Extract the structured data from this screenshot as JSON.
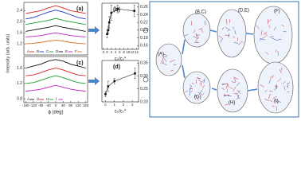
{
  "chart_data": [
    {
      "type": "line",
      "label": "(a)",
      "y_label": "Intensity (arb. units)",
      "xlim": [
        -170,
        170
      ],
      "ylim": [
        0.8,
        2.7
      ],
      "yticks": [
        1.2,
        1.6,
        {
          "value": 2,
          "label": "2.0"
        },
        2.4
      ],
      "x": [
        -160,
        -120,
        -80,
        -40,
        0,
        40,
        80,
        120,
        160
      ],
      "series": [
        {
          "name": "A",
          "color": "#d62020",
          "values": [
            2.3,
            2.35,
            2.4,
            2.5,
            2.58,
            2.5,
            2.4,
            2.35,
            2.3
          ]
        },
        {
          "name": "B",
          "color": "#2030c8",
          "values": [
            2.1,
            2.15,
            2.25,
            2.35,
            2.42,
            2.35,
            2.25,
            2.15,
            2.1
          ]
        },
        {
          "name": "C",
          "color": "#1a9a30",
          "values": [
            1.9,
            1.95,
            2.0,
            2.05,
            2.12,
            2.05,
            2.0,
            1.95,
            1.9
          ]
        },
        {
          "name": "D",
          "color": "#111111",
          "values": [
            1.65,
            1.7,
            1.75,
            1.8,
            1.86,
            1.8,
            1.75,
            1.7,
            1.65
          ]
        },
        {
          "name": "E",
          "color": "#c020c0",
          "values": [
            1.45,
            1.47,
            1.5,
            1.55,
            1.6,
            1.55,
            1.5,
            1.47,
            1.45
          ]
        },
        {
          "name": "F",
          "color": "#e07020",
          "values": [
            1.2,
            1.22,
            1.25,
            1.3,
            1.33,
            1.3,
            1.25,
            1.22,
            1.2
          ]
        }
      ]
    },
    {
      "type": "line",
      "label": "(c)",
      "x_label": "ϕ (deg)",
      "xlim": [
        -170,
        170
      ],
      "ylim": [
        0.7,
        1.9
      ],
      "xticks": [
        -160,
        -120,
        -80,
        -40,
        0,
        40,
        80,
        120,
        160
      ],
      "yticks": [
        0.8,
        1.2,
        1.6
      ],
      "x": [
        -160,
        -120,
        -80,
        -40,
        0,
        40,
        80,
        120,
        160
      ],
      "series": [
        {
          "name": "A",
          "color": "#111111",
          "values": [
            1.6,
            1.65,
            1.7,
            1.78,
            1.82,
            1.78,
            1.7,
            1.65,
            1.6
          ]
        },
        {
          "name": "G",
          "color": "#d62020",
          "values": [
            1.4,
            1.42,
            1.48,
            1.55,
            1.6,
            1.55,
            1.48,
            1.42,
            1.4
          ]
        },
        {
          "name": "H",
          "color": "#1a9a30",
          "values": [
            1.2,
            1.22,
            1.28,
            1.35,
            1.4,
            1.35,
            1.28,
            1.22,
            1.2
          ]
        },
        {
          "name": "I",
          "color": "#c020c0",
          "values": [
            1.0,
            1.02,
            1.05,
            1.1,
            1.15,
            1.1,
            1.05,
            1.02,
            1.0
          ]
        }
      ]
    },
    {
      "type": "errorline",
      "label": "(b)",
      "x_label": "cₛ/cₛ*",
      "xlim": [
        -2.5,
        15
      ],
      "xticks": [
        -2,
        0,
        2,
        4,
        6,
        8,
        10,
        12,
        14
      ],
      "y2lim": [
        0.15,
        0.27
      ],
      "y2ticks": [
        0.16,
        0.18,
        {
          "value": 0.2,
          "label": "0.20"
        },
        0.22,
        0.24,
        0.26
      ],
      "x": [
        0,
        0.5,
        1,
        2,
        5,
        13
      ],
      "series": [
        {
          "color": "#111111",
          "axis": "y2",
          "values": [
            0.19,
            0.2,
            0.22,
            0.245,
            0.255,
            0.25
          ],
          "errors": [
            0.01,
            0.01,
            0.015,
            0.02,
            0.01,
            0.015
          ]
        }
      ]
    },
    {
      "type": "errorline",
      "label": "(d)",
      "x_label": "cₛ/cₛ*",
      "xlim": [
        -0.4,
        3.7
      ],
      "xticks": [
        0,
        1,
        2,
        3
      ],
      "y2lim": [
        0.2,
        0.36
      ],
      "y2ticks": [
        {
          "value": 0.2,
          "label": "0.20"
        },
        0.25,
        {
          "value": 0.3,
          "label": "0.30"
        },
        0.35
      ],
      "x": [
        0,
        0.3,
        1,
        3.3
      ],
      "series": [
        {
          "color": "#111111",
          "axis": "y2",
          "values": [
            0.23,
            0.26,
            0.28,
            0.31
          ],
          "errors": [
            0.01,
            0.02,
            0.01,
            0.02
          ]
        }
      ]
    }
  ],
  "diagram": {
    "nodes": [
      {
        "label": "(A)"
      },
      {
        "label": "(B,C)"
      },
      {
        "label": "(D,E)"
      },
      {
        "label": "(F)"
      },
      {
        "label": "(G)"
      },
      {
        "label": "(H)"
      },
      {
        "label": "(I)"
      }
    ]
  }
}
